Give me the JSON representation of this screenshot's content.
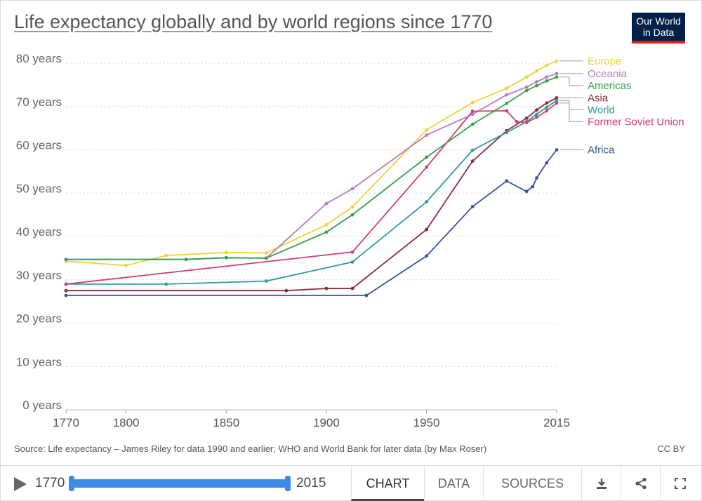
{
  "title": "Life expectancy globally and by world regions since 1770",
  "logo": {
    "line1": "Our World",
    "line2": "in Data"
  },
  "source": "Source: Life expectancy – James Riley for data 1990 and earlier; WHO and World Bank for later data (by Max Roser)",
  "license": "CC BY",
  "footer": {
    "start_year": "1770",
    "end_year": "2015",
    "tabs": [
      "CHART",
      "DATA",
      "SOURCES"
    ],
    "icons": [
      "download-icon",
      "share-icon",
      "fullscreen-icon"
    ]
  },
  "chart_data": {
    "type": "line",
    "title": "Life expectancy globally and by world regions since 1770",
    "xlim": [
      1770,
      2015
    ],
    "ylim": [
      0,
      80
    ],
    "x_ticks": [
      "1770",
      "1800",
      "1850",
      "1900",
      "1950",
      "2015"
    ],
    "x_tick_values": [
      1770,
      1800,
      1850,
      1900,
      1950,
      2015
    ],
    "y_ticks": [
      "0 years",
      "10 years",
      "20 years",
      "30 years",
      "40 years",
      "50 years",
      "60 years",
      "70 years",
      "80 years"
    ],
    "y_tick_values": [
      0,
      10,
      20,
      30,
      40,
      50,
      60,
      70,
      80
    ],
    "grid": "horizontal dashed",
    "legend": "labels at line ends, right",
    "series": [
      {
        "name": "Europe",
        "color": "#f2d13b",
        "x": [
          1770,
          1800,
          1820,
          1850,
          1870,
          1900,
          1913,
          1950,
          1973,
          1990,
          2000,
          2005,
          2010,
          2015
        ],
        "y": [
          34.3,
          33.3,
          35.6,
          36.3,
          36.2,
          42.7,
          46.8,
          64.6,
          70.9,
          74.2,
          76.8,
          78.2,
          79.5,
          80.5
        ]
      },
      {
        "name": "Oceania",
        "color": "#b67bc1",
        "x": [
          1770,
          1830,
          1850,
          1870,
          1900,
          1913,
          1950,
          1973,
          1990,
          2000,
          2005,
          2010,
          2015
        ],
        "y": [
          34.7,
          34.7,
          35.1,
          35.0,
          47.6,
          51.0,
          63.4,
          68.2,
          72.7,
          74.5,
          75.7,
          76.8,
          77.6
        ]
      },
      {
        "name": "Americas",
        "color": "#36a04a",
        "x": [
          1770,
          1830,
          1850,
          1870,
          1900,
          1913,
          1950,
          1973,
          1990,
          2000,
          2005,
          2010,
          2015
        ],
        "y": [
          34.7,
          34.7,
          35.1,
          35.0,
          41.0,
          45.0,
          58.3,
          65.9,
          70.7,
          73.7,
          74.8,
          75.9,
          76.8
        ]
      },
      {
        "name": "Asia",
        "color": "#8e2a3a",
        "x": [
          1770,
          1880,
          1900,
          1913,
          1950,
          1973,
          1990,
          2000,
          2005,
          2010,
          2015
        ],
        "y": [
          27.5,
          27.5,
          28.0,
          28.0,
          41.6,
          57.4,
          64.4,
          67.3,
          69.2,
          70.8,
          72.0
        ]
      },
      {
        "name": "World",
        "color": "#2b9ba3",
        "x": [
          1770,
          1820,
          1870,
          1913,
          1950,
          1973,
          1990,
          2000,
          2005,
          2010,
          2015
        ],
        "y": [
          29.0,
          29.0,
          29.7,
          34.1,
          48.0,
          59.9,
          64.0,
          66.5,
          68.2,
          69.8,
          71.4
        ]
      },
      {
        "name": "Former Soviet Union",
        "color": "#d23f6e",
        "x": [
          1770,
          1913,
          1950,
          1973,
          1990,
          1995,
          2000,
          2005,
          2010,
          2015
        ],
        "y": [
          29.0,
          36.4,
          56.0,
          68.9,
          69.0,
          66.5,
          66.3,
          67.5,
          69.0,
          70.8
        ]
      },
      {
        "name": "Africa",
        "color": "#30589c",
        "x": [
          1770,
          1920,
          1950,
          1973,
          1990,
          2000,
          2003,
          2005,
          2010,
          2015
        ],
        "y": [
          26.4,
          26.4,
          35.5,
          46.9,
          52.8,
          50.4,
          51.5,
          53.5,
          57.0,
          60.0
        ]
      }
    ]
  }
}
